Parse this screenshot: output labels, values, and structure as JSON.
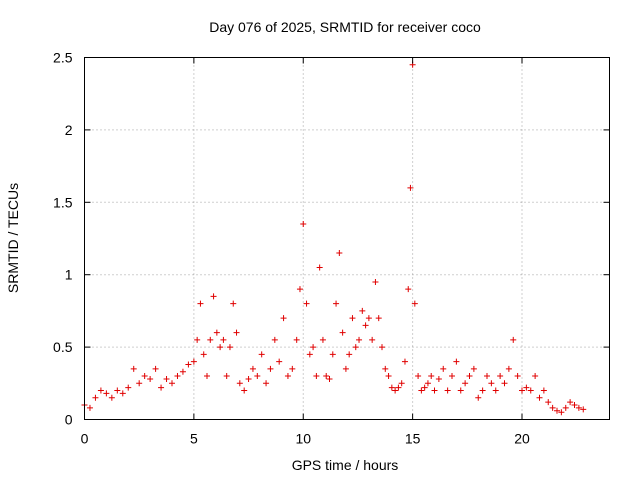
{
  "chart_data": {
    "type": "scatter",
    "title": "Day 076 of 2025, SRMTID for receiver coco",
    "xlabel": "GPS time / hours",
    "ylabel": "SRMTID / TECUs",
    "xlim": [
      0,
      24
    ],
    "ylim": [
      0,
      2.5
    ],
    "xticks": [
      0,
      5,
      10,
      15,
      20
    ],
    "xtick_labels": [
      "0",
      "5",
      "10",
      "15",
      "20"
    ],
    "yticks": [
      0,
      0.5,
      1,
      1.5,
      2,
      2.5
    ],
    "ytick_labels": [
      "0",
      "0.5",
      "1",
      "1.5",
      "2",
      "2.5"
    ],
    "grid": true,
    "marker": "+",
    "color": "#e00000",
    "series": [
      {
        "name": "SRMTID",
        "x": [
          0.0,
          0.25,
          0.5,
          0.75,
          1.0,
          1.25,
          1.5,
          1.75,
          2.0,
          2.25,
          2.5,
          2.75,
          3.0,
          3.25,
          3.5,
          3.75,
          4.0,
          4.25,
          4.5,
          4.75,
          5.0,
          5.15,
          5.3,
          5.45,
          5.6,
          5.75,
          5.9,
          6.05,
          6.2,
          6.35,
          6.5,
          6.65,
          6.8,
          6.95,
          7.1,
          7.3,
          7.5,
          7.7,
          7.9,
          8.1,
          8.3,
          8.5,
          8.7,
          8.9,
          9.1,
          9.3,
          9.5,
          9.7,
          9.85,
          10.0,
          10.15,
          10.3,
          10.45,
          10.6,
          10.75,
          10.9,
          11.05,
          11.2,
          11.35,
          11.5,
          11.65,
          11.8,
          11.95,
          12.1,
          12.25,
          12.4,
          12.55,
          12.7,
          12.85,
          13.0,
          13.15,
          13.3,
          13.45,
          13.6,
          13.75,
          13.9,
          14.05,
          14.2,
          14.35,
          14.5,
          14.65,
          14.8,
          14.9,
          15.0,
          15.1,
          15.25,
          15.4,
          15.55,
          15.7,
          15.85,
          16.0,
          16.2,
          16.4,
          16.6,
          16.8,
          17.0,
          17.2,
          17.4,
          17.6,
          17.8,
          18.0,
          18.2,
          18.4,
          18.6,
          18.8,
          19.0,
          19.2,
          19.4,
          19.6,
          19.8,
          20.0,
          20.2,
          20.4,
          20.6,
          20.8,
          21.0,
          21.2,
          21.4,
          21.6,
          21.8,
          22.0,
          22.2,
          22.4,
          22.6,
          22.8
        ],
        "values": [
          0.1,
          0.08,
          0.15,
          0.2,
          0.18,
          0.15,
          0.2,
          0.18,
          0.22,
          0.35,
          0.25,
          0.3,
          0.28,
          0.35,
          0.22,
          0.28,
          0.25,
          0.3,
          0.33,
          0.38,
          0.4,
          0.55,
          0.8,
          0.45,
          0.3,
          0.55,
          0.85,
          0.6,
          0.5,
          0.55,
          0.3,
          0.5,
          0.8,
          0.6,
          0.25,
          0.2,
          0.28,
          0.35,
          0.3,
          0.45,
          0.25,
          0.35,
          0.55,
          0.4,
          0.7,
          0.3,
          0.35,
          0.55,
          0.9,
          1.35,
          0.8,
          0.45,
          0.5,
          0.3,
          1.05,
          0.55,
          0.3,
          0.28,
          0.45,
          0.8,
          1.15,
          0.6,
          0.35,
          0.45,
          0.7,
          0.5,
          0.55,
          0.75,
          0.65,
          0.7,
          0.55,
          0.95,
          0.7,
          0.5,
          0.35,
          0.3,
          0.22,
          0.2,
          0.22,
          0.25,
          0.4,
          0.9,
          1.6,
          2.45,
          0.8,
          0.3,
          0.2,
          0.22,
          0.25,
          0.3,
          0.2,
          0.28,
          0.35,
          0.2,
          0.3,
          0.4,
          0.2,
          0.25,
          0.3,
          0.35,
          0.15,
          0.2,
          0.3,
          0.25,
          0.2,
          0.3,
          0.25,
          0.35,
          0.55,
          0.3,
          0.2,
          0.22,
          0.2,
          0.3,
          0.15,
          0.2,
          0.12,
          0.08,
          0.06,
          0.05,
          0.08,
          0.12,
          0.1,
          0.08,
          0.07
        ]
      }
    ]
  }
}
